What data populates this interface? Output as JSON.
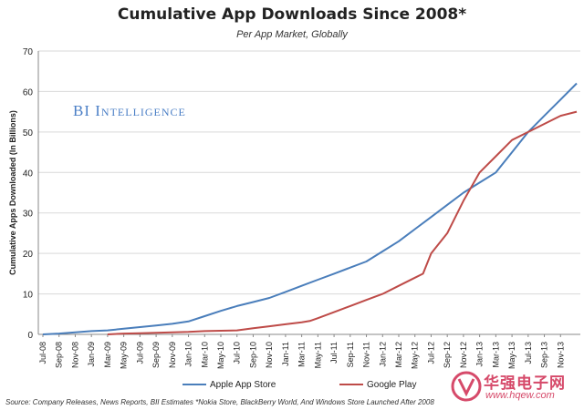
{
  "chart_data": {
    "type": "line",
    "title": "Cumulative App Downloads Since 2008*",
    "subtitle": "Per App Market, Globally",
    "xlabel": "",
    "ylabel": "Cumulative Apps Downloaded (In Billions)",
    "ylim": [
      0,
      70
    ],
    "yticks": [
      "0",
      "10",
      "20",
      "30",
      "40",
      "50",
      "60",
      "70"
    ],
    "grid": true,
    "legend": "bottom",
    "x_tick_labels": [
      "Jul-08",
      "Sep-08",
      "Nov-08",
      "Jan-09",
      "Mar-09",
      "May-09",
      "Jul-09",
      "Sep-09",
      "Nov-09",
      "Jan-10",
      "Mar-10",
      "May-10",
      "Jul-10",
      "Sep-10",
      "Nov-10",
      "Jan-11",
      "Mar-11",
      "May-11",
      "Jul-11",
      "Sep-11",
      "Nov-11",
      "Jan-12",
      "Mar-12",
      "May-12",
      "Jul-12",
      "Sep-12",
      "Nov-12",
      "Jan-13",
      "Mar-13",
      "May-13",
      "Jul-13",
      "Sep-13",
      "Nov-13"
    ],
    "series": [
      {
        "name": "Apple App Store",
        "color": "#4a7ebb",
        "x": [
          "Jul-08",
          "Sep-08",
          "Nov-08",
          "Jan-09",
          "Mar-09",
          "May-09",
          "Jul-09",
          "Sep-09",
          "Nov-09",
          "Jan-10",
          "Mar-10",
          "May-10",
          "Jul-10",
          "Sep-10",
          "Nov-10",
          "Jan-11",
          "Mar-11",
          "May-11",
          "Jul-11",
          "Sep-11",
          "Nov-11",
          "Jan-12",
          "Mar-12",
          "May-12",
          "Jul-12",
          "Sep-12",
          "Nov-12",
          "Jan-13",
          "Mar-13",
          "May-13",
          "Jul-13",
          "Sep-13",
          "Nov-13",
          "Jan-14"
        ],
        "values": [
          0,
          0.2,
          0.5,
          0.8,
          1,
          1.4,
          1.8,
          2.2,
          2.6,
          3.2,
          4.5,
          5.8,
          7,
          8,
          9,
          10.5,
          12,
          13.5,
          15,
          16.5,
          18,
          20.5,
          23,
          26,
          29,
          32,
          35,
          37.5,
          40,
          45,
          50,
          54,
          58,
          62
        ]
      },
      {
        "name": "Google Play",
        "color": "#be4b48",
        "x": [
          "Mar-09",
          "May-09",
          "Jul-09",
          "Sep-09",
          "Nov-09",
          "Jan-10",
          "Mar-10",
          "May-10",
          "Jul-10",
          "Sep-10",
          "Nov-10",
          "Jan-11",
          "Mar-11",
          "Apr-11",
          "May-11",
          "Jul-11",
          "Sep-11",
          "Nov-11",
          "Jan-12",
          "Mar-12",
          "May-12",
          "Jun-12",
          "Jul-12",
          "Sep-12",
          "Nov-12",
          "Jan-13",
          "Mar-13",
          "May-13",
          "Jul-13",
          "Sep-13",
          "Nov-13",
          "Jan-14"
        ],
        "values": [
          0,
          0.2,
          0.3,
          0.4,
          0.5,
          0.6,
          0.8,
          0.9,
          1,
          1.5,
          2,
          2.5,
          3,
          3.3,
          4,
          5.5,
          7,
          8.5,
          10,
          12,
          14,
          15,
          20,
          25,
          33,
          40,
          44,
          48,
          50,
          52,
          54,
          55
        ]
      }
    ]
  },
  "brand": "BI Intelligence",
  "source": "Source: Company Releases, News Reports, BII Estimates *Nokia Store, BlackBerry World, And Windows Store Launched After 2008",
  "watermark": {
    "text": "华强电子网",
    "url": "www.hqew.com",
    "color": "#d64a6a"
  }
}
